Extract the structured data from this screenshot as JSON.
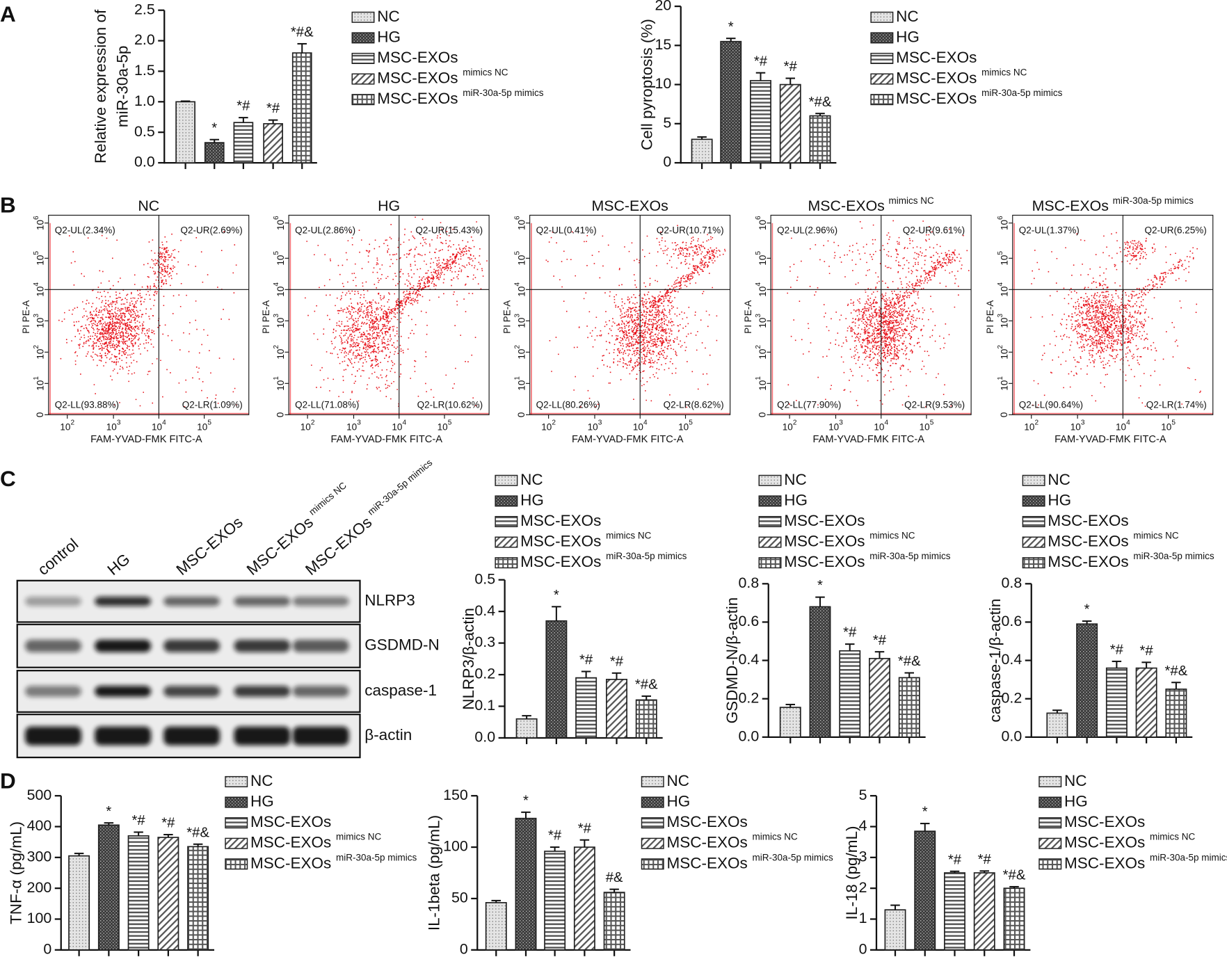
{
  "panels": [
    "A",
    "B",
    "C",
    "D"
  ],
  "chart_data": [
    {
      "type": "bar",
      "ylabel": [
        "Relative expression of",
        "miR-30a-5p"
      ],
      "categories": [
        "NC",
        "HG",
        "MSC-EXOs",
        "MSC-EXOs",
        "MSC-EXOs"
      ],
      "category_suffixes": [
        null,
        null,
        null,
        "mimics NC",
        "miR-30a-5p mimics"
      ],
      "values": [
        1.0,
        0.33,
        0.66,
        0.64,
        1.8
      ],
      "errors": [
        0.01,
        0.05,
        0.08,
        0.06,
        0.15
      ],
      "annotations": [
        null,
        "*",
        "*#",
        "*#",
        "*#&"
      ],
      "patterns": [
        "dots",
        "checker",
        "hlines",
        "diagonal",
        "grid"
      ],
      "ylim": [
        0,
        2.5
      ],
      "yticks": [
        {
          "value": 0,
          "label": "0.0"
        },
        0.5,
        {
          "value": 1,
          "label": "1.0"
        },
        1.5,
        {
          "value": 2,
          "label": "2.0"
        },
        2.5
      ],
      "legend": "right"
    },
    {
      "type": "bar",
      "ylabel": "Cell pyroptosis (%)",
      "categories": [
        "NC",
        "HG",
        "MSC-EXOs",
        "MSC-EXOs",
        "MSC-EXOs"
      ],
      "category_suffixes": [
        null,
        null,
        null,
        "mimics NC",
        "miR-30a-5p mimics"
      ],
      "values": [
        3.0,
        15.5,
        10.5,
        10.0,
        6.0
      ],
      "errors": [
        0.3,
        0.4,
        1.0,
        0.8,
        0.3
      ],
      "annotations": [
        null,
        "*",
        "*#",
        "*#",
        "*#&"
      ],
      "patterns": [
        "dots",
        "checker",
        "hlines",
        "diagonal",
        "grid"
      ],
      "ylim": [
        0,
        20
      ],
      "yticks": [
        0,
        5,
        10,
        15,
        20
      ],
      "legend": "right"
    },
    {
      "type": "bar",
      "ylabel": "NLRP3/β-actin",
      "categories": [
        "NC",
        "HG",
        "MSC-EXOs",
        "MSC-EXOs",
        "MSC-EXOs"
      ],
      "category_suffixes": [
        null,
        null,
        null,
        "mimics NC",
        "miR-30a-5p mimics"
      ],
      "values": [
        0.06,
        0.37,
        0.19,
        0.185,
        0.12
      ],
      "errors": [
        0.01,
        0.045,
        0.02,
        0.02,
        0.012
      ],
      "annotations": [
        null,
        "*",
        "*#",
        "*#",
        "*#&"
      ],
      "patterns": [
        "dots",
        "checker",
        "hlines",
        "diagonal",
        "grid"
      ],
      "ylim": [
        0,
        0.5
      ],
      "yticks": [
        {
          "value": 0,
          "label": "0.0"
        },
        0.1,
        0.2,
        0.3,
        0.4,
        0.5
      ],
      "legend": "top"
    },
    {
      "type": "bar",
      "ylabel": "GSDMD-N/β-actin",
      "categories": [
        "NC",
        "HG",
        "MSC-EXOs",
        "MSC-EXOs",
        "MSC-EXOs"
      ],
      "category_suffixes": [
        null,
        null,
        null,
        "mimics NC",
        "miR-30a-5p mimics"
      ],
      "values": [
        0.155,
        0.68,
        0.45,
        0.41,
        0.31
      ],
      "errors": [
        0.015,
        0.05,
        0.035,
        0.035,
        0.025
      ],
      "annotations": [
        null,
        "*",
        "*#",
        "*#",
        "*#&"
      ],
      "patterns": [
        "dots",
        "checker",
        "hlines",
        "diagonal",
        "grid"
      ],
      "ylim": [
        0,
        0.8
      ],
      "yticks": [
        {
          "value": 0,
          "label": "0.0"
        },
        0.2,
        0.4,
        0.6,
        0.8
      ],
      "legend": "top"
    },
    {
      "type": "bar",
      "ylabel": "caspase-1/β-actin",
      "categories": [
        "NC",
        "HG",
        "MSC-EXOs",
        "MSC-EXOs",
        "MSC-EXOs"
      ],
      "category_suffixes": [
        null,
        null,
        null,
        "mimics NC",
        "miR-30a-5p mimics"
      ],
      "values": [
        0.125,
        0.59,
        0.36,
        0.36,
        0.25
      ],
      "errors": [
        0.015,
        0.015,
        0.035,
        0.03,
        0.035
      ],
      "annotations": [
        null,
        "*",
        "*#",
        "*#",
        "*#&"
      ],
      "patterns": [
        "dots",
        "checker",
        "hlines",
        "diagonal",
        "grid"
      ],
      "ylim": [
        0,
        0.8
      ],
      "yticks": [
        {
          "value": 0,
          "label": "0.0"
        },
        0.2,
        0.4,
        0.6,
        0.8
      ],
      "legend": "top"
    },
    {
      "type": "bar",
      "ylabel": "TNF-α (pg/mL)",
      "categories": [
        "NC",
        "HG",
        "MSC-EXOs",
        "MSC-EXOs",
        "MSC-EXOs"
      ],
      "category_suffixes": [
        null,
        null,
        null,
        "mimics NC",
        "miR-30a-5p mimics"
      ],
      "values": [
        305,
        405,
        370,
        365,
        335
      ],
      "errors": [
        8,
        7,
        12,
        9,
        8
      ],
      "annotations": [
        null,
        "*",
        "*#",
        "*#",
        "*#&"
      ],
      "patterns": [
        "dots",
        "checker",
        "hlines",
        "diagonal",
        "grid"
      ],
      "ylim": [
        0,
        500
      ],
      "yticks": [
        0,
        100,
        200,
        300,
        400,
        500
      ],
      "legend": "right"
    },
    {
      "type": "bar",
      "ylabel": "IL-1beta (pg/mL)",
      "categories": [
        "NC",
        "HG",
        "MSC-EXOs",
        "MSC-EXOs",
        "MSC-EXOs"
      ],
      "category_suffixes": [
        null,
        null,
        null,
        "mimics NC",
        "miR-30a-5p mimics"
      ],
      "values": [
        46,
        128,
        96,
        100,
        56
      ],
      "errors": [
        2,
        6,
        4,
        7,
        3
      ],
      "annotations": [
        null,
        "*",
        "*#",
        "*#",
        "#&"
      ],
      "patterns": [
        "dots",
        "checker",
        "hlines",
        "diagonal",
        "grid"
      ],
      "ylim": [
        0,
        150
      ],
      "yticks": [
        0,
        50,
        100,
        150
      ],
      "legend": "right"
    },
    {
      "type": "bar",
      "ylabel": "IL-18 (pg/mL)",
      "categories": [
        "NC",
        "HG",
        "MSC-EXOs",
        "MSC-EXOs",
        "MSC-EXOs"
      ],
      "category_suffixes": [
        null,
        null,
        null,
        "mimics NC",
        "miR-30a-5p mimics"
      ],
      "values": [
        1.3,
        3.85,
        2.5,
        2.5,
        2.0
      ],
      "errors": [
        0.15,
        0.25,
        0.05,
        0.06,
        0.05
      ],
      "annotations": [
        null,
        "*",
        "*#",
        "*#",
        "*#&"
      ],
      "patterns": [
        "dots",
        "checker",
        "hlines",
        "diagonal",
        "grid"
      ],
      "ylim": [
        0,
        5
      ],
      "yticks": [
        0,
        1,
        2,
        3,
        4,
        5
      ],
      "legend": "right"
    }
  ],
  "flow_axes": {
    "ylabel": "PI PE-A",
    "xlabel": "FAM-YVAD-FMK FITC-A",
    "yticks": [
      "0",
      {
        "base": "10",
        "exp": "1"
      },
      {
        "base": "10",
        "exp": "2"
      },
      {
        "base": "10",
        "exp": "3"
      },
      {
        "base": "10",
        "exp": "4"
      },
      {
        "base": "10",
        "exp": "5"
      },
      {
        "base": "10",
        "exp": "6"
      }
    ],
    "xticks": [
      {
        "base": "10",
        "exp": "2"
      },
      {
        "base": "10",
        "exp": "3"
      },
      {
        "base": "10",
        "exp": "4"
      },
      {
        "base": "10",
        "exp": "5"
      }
    ]
  },
  "flow_panels": [
    {
      "title": "NC",
      "quadrants": [
        "Q2-UL(2.34%)",
        "Q2-UR(2.69%)",
        "Q2-LL(93.88%)",
        "Q2-LR(1.09%)"
      ]
    },
    {
      "title": "HG",
      "quadrants": [
        "Q2-UL(2.86%)",
        "Q2-UR(15.43%)",
        "Q2-LL(71.08%)",
        "Q2-LR(10.62%)"
      ]
    },
    {
      "title": "MSC-EXOs",
      "quadrants": [
        "Q2-UL(0.41%)",
        "Q2-UR(10.71%)",
        "Q2-LL(80.26%)",
        "Q2-LR(8.62%)"
      ]
    },
    {
      "title": "MSC-EXOs",
      "title_sup": "mimics NC",
      "quadrants": [
        "Q2-UL(2.96%)",
        "Q2-UR(9.61%)",
        "Q2-LL(77.90%)",
        "Q2-LR(9.53%)"
      ]
    },
    {
      "title": "MSC-EXOs",
      "title_sup": "miR-30a-5p mimics",
      "quadrants": [
        "Q2-UL(1.37%)",
        "Q2-UR(6.25%)",
        "Q2-LL(90.64%)",
        "Q2-LR(1.74%)"
      ]
    }
  ],
  "blot": {
    "lanes": [
      {
        "label": "control"
      },
      {
        "label": "HG"
      },
      {
        "label": "MSC-EXOs"
      },
      {
        "label": "MSC-EXOs",
        "sup": "mimics NC"
      },
      {
        "label": "MSC-EXOs",
        "sup": "miR-30a-5p mimics"
      }
    ],
    "rows": [
      "NLRP3",
      "GSDMD-N",
      "caspase-1",
      "β-actin"
    ]
  }
}
